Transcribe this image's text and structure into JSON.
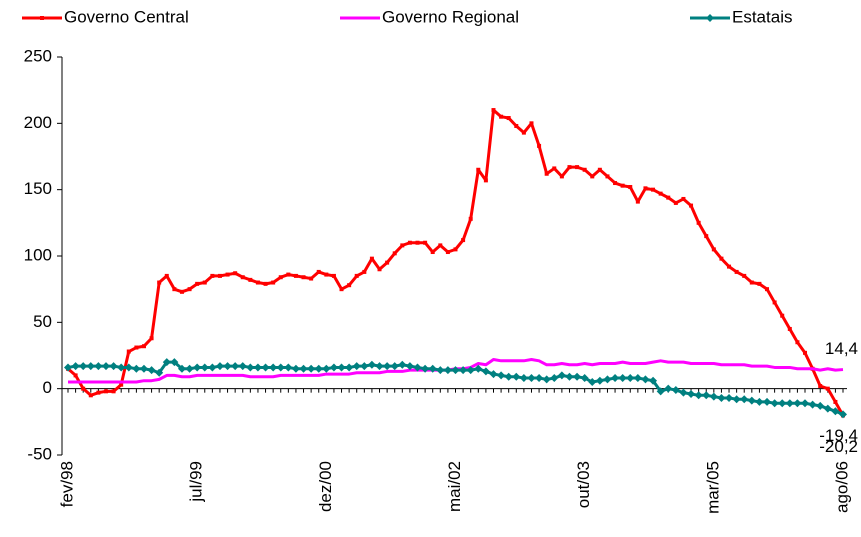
{
  "chart_data": {
    "type": "line",
    "categories": [
      "fev/98",
      null,
      null,
      null,
      null,
      null,
      null,
      null,
      null,
      null,
      null,
      null,
      null,
      null,
      null,
      null,
      null,
      "jul/99",
      null,
      null,
      null,
      null,
      null,
      null,
      null,
      null,
      null,
      null,
      null,
      null,
      null,
      null,
      null,
      null,
      "dez/00",
      null,
      null,
      null,
      null,
      null,
      null,
      null,
      null,
      null,
      null,
      null,
      null,
      null,
      null,
      null,
      null,
      "mai/02",
      null,
      null,
      null,
      null,
      null,
      null,
      null,
      null,
      null,
      null,
      null,
      null,
      null,
      null,
      null,
      null,
      "out/03",
      null,
      null,
      null,
      null,
      null,
      null,
      null,
      null,
      null,
      null,
      null,
      null,
      null,
      null,
      null,
      null,
      "mar/05",
      null,
      null,
      null,
      null,
      null,
      null,
      null,
      null,
      null,
      null,
      null,
      null,
      null,
      null,
      null,
      null,
      "ago/06"
    ],
    "series": [
      {
        "name": "Governo Central",
        "color": "#ff0000",
        "marker": "square",
        "values": [
          15,
          10,
          0,
          -5,
          -3,
          -2,
          -2,
          3,
          28,
          31,
          32,
          38,
          80,
          85,
          75,
          73,
          75,
          79,
          80,
          85,
          85,
          86,
          87,
          84,
          82,
          80,
          79,
          80,
          84,
          86,
          85,
          84,
          83,
          88,
          86,
          85,
          75,
          78,
          85,
          88,
          98,
          90,
          95,
          102,
          108,
          110,
          110,
          110,
          103,
          108,
          103,
          105,
          112,
          128,
          165,
          157,
          210,
          205,
          204,
          198,
          193,
          200,
          183,
          162,
          166,
          160,
          167,
          167,
          165,
          160,
          165,
          160,
          155,
          153,
          152,
          141,
          151,
          150,
          147,
          144,
          140,
          143,
          138,
          125,
          115,
          105,
          98,
          92,
          88,
          85,
          80,
          79,
          75,
          65,
          55,
          45,
          35,
          27,
          15,
          2,
          0,
          -10,
          -20.2
        ],
        "value_labels": [
          null,
          null,
          null,
          null,
          null,
          null,
          null,
          null,
          null,
          null,
          null,
          null,
          null,
          null,
          null,
          null,
          null,
          null,
          null,
          null,
          null,
          null,
          null,
          null,
          null,
          null,
          null,
          null,
          null,
          null,
          null,
          null,
          null,
          null,
          null,
          null,
          null,
          null,
          null,
          null,
          null,
          null,
          null,
          null,
          null,
          null,
          null,
          null,
          null,
          null,
          null,
          null,
          null,
          null,
          null,
          null,
          null,
          null,
          null,
          null,
          null,
          null,
          null,
          null,
          null,
          null,
          null,
          null,
          null,
          null,
          null,
          null,
          null,
          null,
          null,
          null,
          null,
          null,
          null,
          null,
          null,
          null,
          null,
          null,
          null,
          null,
          null,
          null,
          null,
          null,
          null,
          null,
          null,
          null,
          null,
          null,
          null,
          null,
          null,
          null,
          null,
          null,
          "-20,2"
        ]
      },
      {
        "name": "Governo Regional",
        "color": "#ff00ff",
        "marker": "none",
        "values": [
          5,
          5,
          5,
          5,
          5,
          5,
          5,
          5,
          5,
          5,
          6,
          6,
          7,
          10,
          10,
          9,
          9,
          10,
          10,
          10,
          10,
          10,
          10,
          10,
          9,
          9,
          9,
          9,
          10,
          10,
          10,
          10,
          10,
          10,
          11,
          11,
          11,
          11,
          12,
          12,
          12,
          12,
          13,
          13,
          13,
          14,
          14,
          14,
          14,
          14,
          14,
          15,
          15,
          16,
          19,
          18,
          22,
          21,
          21,
          21,
          21,
          22,
          21,
          18,
          18,
          19,
          18,
          18,
          19,
          18,
          19,
          19,
          19,
          20,
          19,
          19,
          19,
          20,
          21,
          20,
          20,
          20,
          19,
          19,
          19,
          19,
          18,
          18,
          18,
          18,
          17,
          17,
          17,
          16,
          16,
          16,
          15,
          15,
          15,
          14,
          15,
          14,
          14.4
        ],
        "value_labels": [
          null,
          null,
          null,
          null,
          null,
          null,
          null,
          null,
          null,
          null,
          null,
          null,
          null,
          null,
          null,
          null,
          null,
          null,
          null,
          null,
          null,
          null,
          null,
          null,
          null,
          null,
          null,
          null,
          null,
          null,
          null,
          null,
          null,
          null,
          null,
          null,
          null,
          null,
          null,
          null,
          null,
          null,
          null,
          null,
          null,
          null,
          null,
          null,
          null,
          null,
          null,
          null,
          null,
          null,
          null,
          null,
          null,
          null,
          null,
          null,
          null,
          null,
          null,
          null,
          null,
          null,
          null,
          null,
          null,
          null,
          null,
          null,
          null,
          null,
          null,
          null,
          null,
          null,
          null,
          null,
          null,
          null,
          null,
          null,
          null,
          null,
          null,
          null,
          null,
          null,
          null,
          null,
          null,
          null,
          null,
          null,
          null,
          null,
          null,
          null,
          null,
          null,
          "14,4"
        ]
      },
      {
        "name": "Estatais",
        "color": "#008080",
        "marker": "diamond",
        "values": [
          16,
          17,
          17,
          17,
          17,
          17,
          17,
          16,
          16,
          15,
          15,
          14,
          12,
          20,
          20,
          15,
          15,
          16,
          16,
          16,
          17,
          17,
          17,
          17,
          16,
          16,
          16,
          16,
          16,
          16,
          15,
          15,
          15,
          15,
          15,
          16,
          16,
          16,
          17,
          17,
          18,
          17,
          17,
          17,
          18,
          17,
          16,
          15,
          15,
          14,
          14,
          14,
          14,
          14,
          15,
          13,
          11,
          10,
          9,
          9,
          8,
          8,
          8,
          7,
          8,
          10,
          9,
          9,
          8,
          5,
          6,
          7,
          8,
          8,
          8,
          8,
          7,
          6,
          -2,
          0,
          -1,
          -3,
          -4,
          -5,
          -5,
          -6,
          -7,
          -7,
          -8,
          -8,
          -9,
          -10,
          -10,
          -11,
          -11,
          -11,
          -11,
          -11,
          -12,
          -13,
          -15,
          -17,
          -19.4
        ],
        "value_labels": [
          null,
          null,
          null,
          null,
          null,
          null,
          null,
          null,
          null,
          null,
          null,
          null,
          null,
          null,
          null,
          null,
          null,
          null,
          null,
          null,
          null,
          null,
          null,
          null,
          null,
          null,
          null,
          null,
          null,
          null,
          null,
          null,
          null,
          null,
          null,
          null,
          null,
          null,
          null,
          null,
          null,
          null,
          null,
          null,
          null,
          null,
          null,
          null,
          null,
          null,
          null,
          null,
          null,
          null,
          null,
          null,
          null,
          null,
          null,
          null,
          null,
          null,
          null,
          null,
          null,
          null,
          null,
          null,
          null,
          null,
          null,
          null,
          null,
          null,
          null,
          null,
          null,
          null,
          null,
          null,
          null,
          null,
          null,
          null,
          null,
          null,
          null,
          null,
          null,
          null,
          null,
          null,
          null,
          null,
          null,
          null,
          null,
          null,
          null,
          null,
          null,
          null,
          "-19,4"
        ]
      }
    ],
    "ylim": [
      -50,
      250
    ],
    "yticks": [
      -50,
      0,
      50,
      100,
      150,
      200,
      250
    ],
    "grid": false,
    "legend": "top"
  }
}
